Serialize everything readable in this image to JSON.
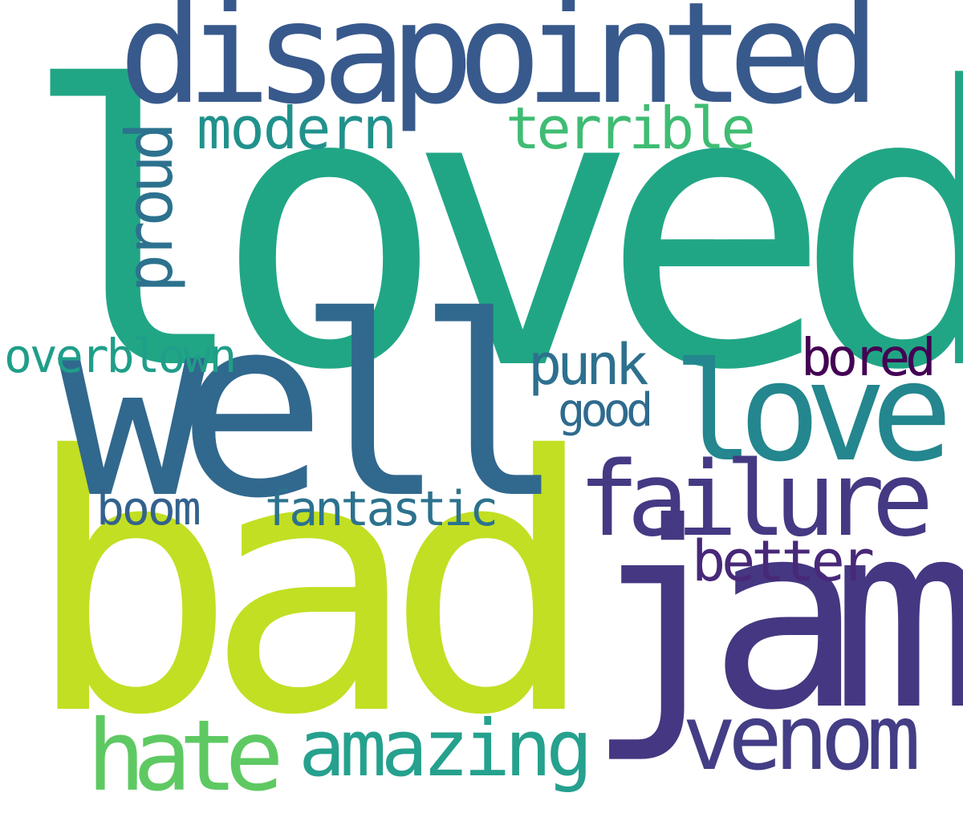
{
  "words": [
    {
      "text": "loved",
      "color": "#21a685"
    },
    {
      "text": "bad",
      "color": "#c2df23"
    },
    {
      "text": "disapointed",
      "color": "#38598c"
    },
    {
      "text": "well",
      "color": "#31688e"
    },
    {
      "text": "jam",
      "color": "#453781"
    },
    {
      "text": "love",
      "color": "#24868e"
    },
    {
      "text": "failure",
      "color": "#443983"
    },
    {
      "text": "venom",
      "color": "#433e85"
    },
    {
      "text": "hate",
      "color": "#5ec962"
    },
    {
      "text": "amazing",
      "color": "#25a18e"
    },
    {
      "text": "modern",
      "color": "#21918c"
    },
    {
      "text": "terrible",
      "color": "#3fbc73"
    },
    {
      "text": "proud",
      "color": "#2c728e"
    },
    {
      "text": "overblown",
      "color": "#1f9e89"
    },
    {
      "text": "punk",
      "color": "#2d708e"
    },
    {
      "text": "bored",
      "color": "#440154"
    },
    {
      "text": "good",
      "color": "#2f6b8e"
    },
    {
      "text": "boom",
      "color": "#33628d"
    },
    {
      "text": "fantastic",
      "color": "#2c728e"
    },
    {
      "text": "better",
      "color": "#482878"
    }
  ]
}
